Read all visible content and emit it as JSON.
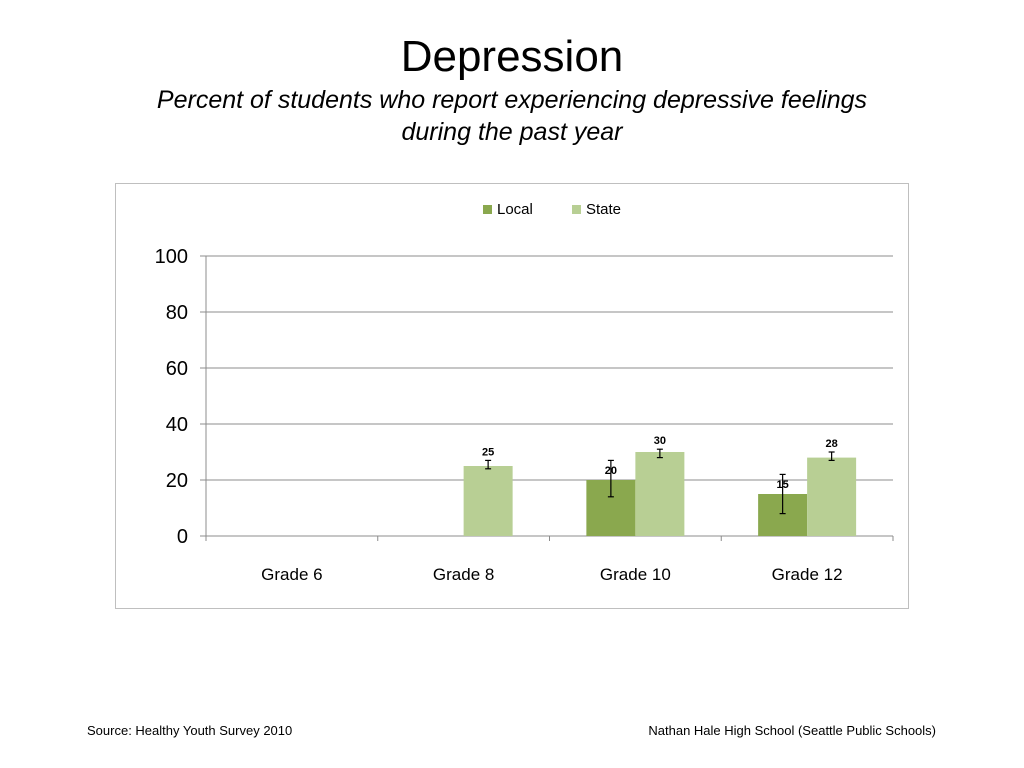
{
  "slide": {
    "title": "Depression",
    "subtitle_line1": "Percent of students who report experiencing depressive feelings",
    "subtitle_line2": "during the past year"
  },
  "footer": {
    "source": "Source: Healthy Youth Survey 2010",
    "school": "Nathan Hale High School (Seattle Public Schools)"
  },
  "colors": {
    "local": "#8aa84e",
    "state": "#b8cf94",
    "grid": "#8c8c8c",
    "error_bar": "#000000"
  },
  "chart_data": {
    "type": "bar",
    "categories": [
      "Grade 6",
      "Grade 8",
      "Grade 10",
      "Grade 12"
    ],
    "ylim": [
      0,
      100
    ],
    "yticks": [
      0,
      20,
      40,
      60,
      80,
      100
    ],
    "grid": true,
    "legend_position": "top-center",
    "series": [
      {
        "name": "Local",
        "values": [
          null,
          null,
          20,
          15
        ],
        "error_low": [
          null,
          null,
          14,
          8
        ],
        "error_high": [
          null,
          null,
          27,
          22
        ]
      },
      {
        "name": "State",
        "values": [
          null,
          25,
          30,
          28
        ],
        "error_low": [
          null,
          24,
          28,
          27
        ],
        "error_high": [
          null,
          27,
          31,
          30
        ]
      }
    ]
  }
}
